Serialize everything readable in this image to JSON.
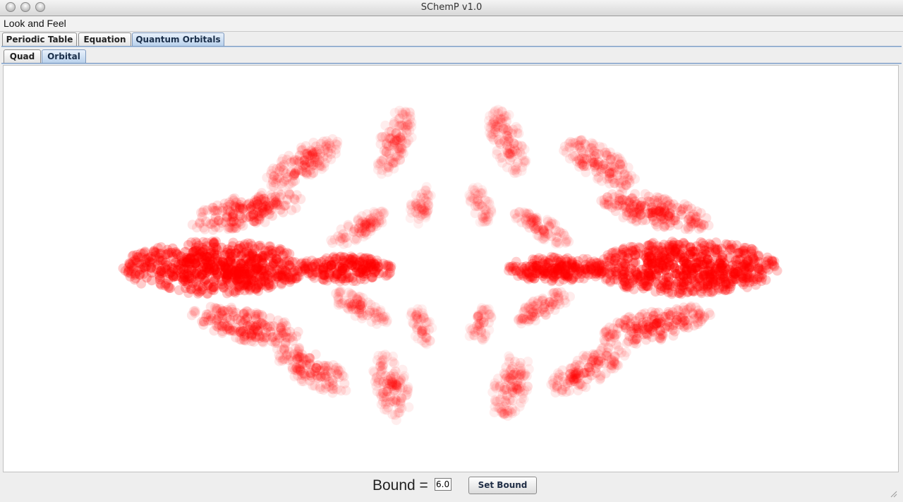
{
  "window": {
    "title": "SChemP v1.0"
  },
  "menubar": {
    "items": [
      "Look and Feel"
    ]
  },
  "outer_tabs": [
    {
      "label": "Periodic Table",
      "selected": false
    },
    {
      "label": "Equation",
      "selected": false
    },
    {
      "label": "Quantum Orbitals",
      "selected": true
    }
  ],
  "inner_tabs": [
    {
      "label": "Quad",
      "selected": false
    },
    {
      "label": "Orbital",
      "selected": true
    }
  ],
  "orbital": {
    "point_color": "#ff0000"
  },
  "controls": {
    "bound_label": "Bound =",
    "bound_value": "6.0",
    "set_button_label": "Set Bound"
  }
}
